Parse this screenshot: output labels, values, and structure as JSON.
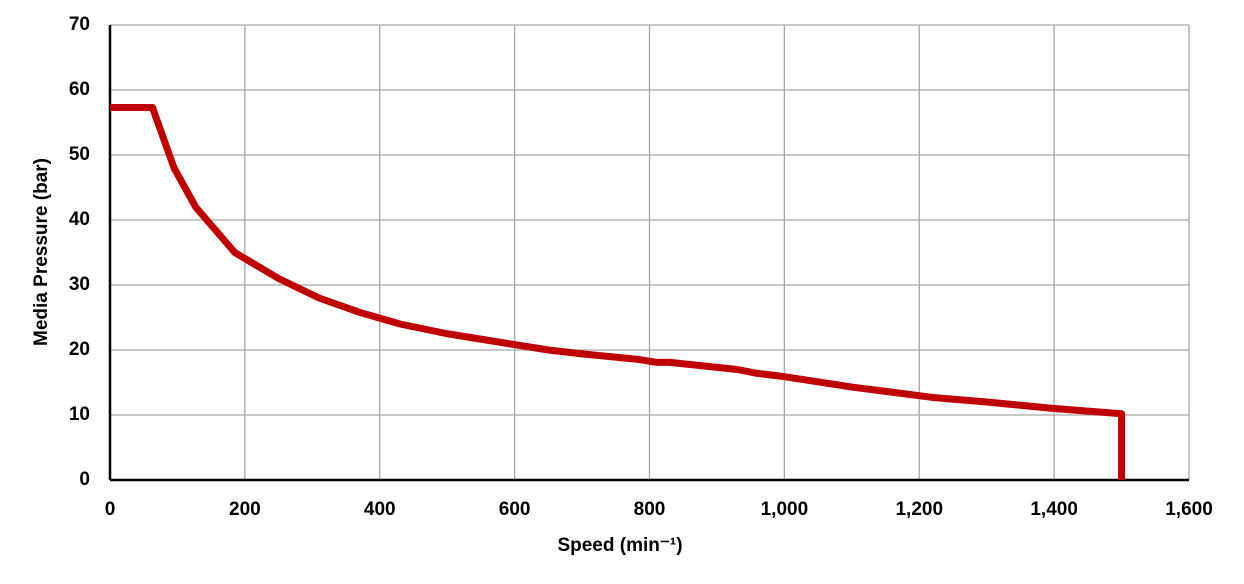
{
  "chart_data": {
    "type": "line",
    "x_label": "Speed (min⁻¹)",
    "y_label": "Media Pressure (bar)",
    "x": [
      0,
      63,
      95,
      127,
      185,
      250,
      310,
      370,
      430,
      500,
      560,
      620,
      650,
      700,
      780,
      810,
      830,
      930,
      960,
      1000,
      1100,
      1220,
      1300,
      1400,
      1500,
      1500
    ],
    "values": [
      57.3,
      57.3,
      48,
      42,
      35,
      31,
      28,
      25.8,
      24,
      22.5,
      21.5,
      20.5,
      20,
      19.4,
      18.6,
      18.1,
      18.1,
      17,
      16.4,
      15.9,
      14.3,
      12.7,
      12,
      11,
      10.2,
      0
    ],
    "color": "#c00000",
    "xlim": [
      0,
      1600
    ],
    "ylim": [
      0,
      70
    ],
    "xticks": [
      0,
      200,
      400,
      600,
      800,
      {
        "value": 1000,
        "label": "1,000"
      },
      {
        "value": 1200,
        "label": "1,200"
      },
      {
        "value": 1400,
        "label": "1,400"
      },
      {
        "value": 1600,
        "label": "1,600"
      }
    ],
    "yticks": [
      0,
      10,
      20,
      30,
      40,
      50,
      60,
      70
    ],
    "grid": true
  }
}
